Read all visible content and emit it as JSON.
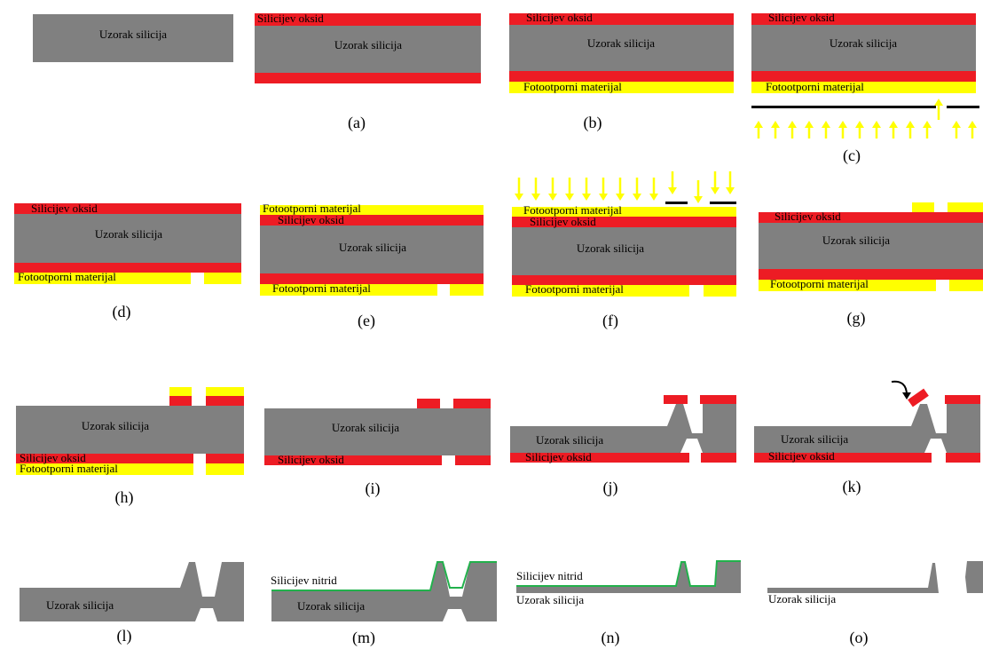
{
  "panels": [
    {
      "labels": [
        "Uzorak silicija"
      ]
    },
    {
      "caption": "(a)",
      "labels": [
        "Silicijev oksid",
        "Uzorak silicija"
      ]
    },
    {
      "caption": "(b)",
      "labels": [
        "Silicijev oksid",
        "Uzorak silicija",
        "Fotootporni materijal"
      ]
    },
    {
      "caption": "(c)",
      "labels": [
        "Silicijev oksid",
        "Uzorak silicija",
        "Fotootporni materijal"
      ]
    },
    {
      "caption": "(d)",
      "labels": [
        "Silicijev oksid",
        "Uzorak silicija",
        "Fotootporni materijal"
      ]
    },
    {
      "caption": "(e)",
      "labels": [
        "Fotootporni materijal",
        "Silicijev oksid",
        "Uzorak silicija",
        "Fotootporni materijal"
      ]
    },
    {
      "caption": "(f)",
      "labels": [
        "Fotootporni materijal",
        "Silicijev oksid",
        "Uzorak silicija",
        "Fotootporni materijal"
      ]
    },
    {
      "caption": "(g)",
      "labels": [
        "Silicijev oksid",
        "Uzorak silicija",
        "Fotootporni materijal"
      ]
    },
    {
      "caption": "(h)",
      "labels": [
        "Uzorak silicija",
        "Silicijev oksid",
        "Fotootporni materijal"
      ]
    },
    {
      "caption": "(i)",
      "labels": [
        "Uzorak silicija",
        "Silicijev oksid"
      ]
    },
    {
      "caption": "(j)",
      "labels": [
        "Uzorak silicija",
        "Silicijev oksid"
      ]
    },
    {
      "caption": "(k)",
      "labels": [
        "Uzorak silicija",
        "Silicijev oksid"
      ]
    },
    {
      "caption": "(l)",
      "labels": [
        "Uzorak silicija"
      ]
    },
    {
      "caption": "(m)",
      "labels": [
        "Silicijev nitrid",
        "Uzorak silicija"
      ]
    },
    {
      "caption": "(n)",
      "labels": [
        "Silicijev nitrid",
        "Uzorak silicija"
      ]
    },
    {
      "caption": "(o)",
      "labels": [
        "Uzorak silicija"
      ]
    }
  ]
}
